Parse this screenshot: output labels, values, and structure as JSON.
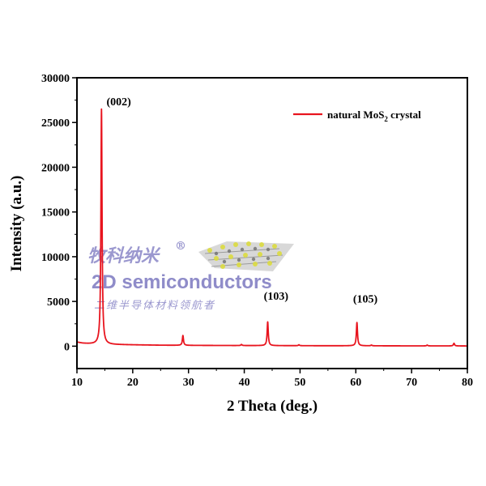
{
  "chart_data": {
    "type": "line",
    "xlabel": "2 Theta (deg.)",
    "ylabel": "Intensity (a.u.)",
    "xlim": [
      10,
      80
    ],
    "ylim": [
      -2500,
      30000
    ],
    "x_ticks": [
      10,
      20,
      30,
      40,
      50,
      60,
      70,
      80
    ],
    "y_ticks": [
      0,
      5000,
      10000,
      15000,
      20000,
      25000,
      30000
    ],
    "series": [
      {
        "name": "natural MoS2 crystal",
        "color": "#e8141e",
        "baseline": [
          [
            10,
            450
          ],
          [
            11,
            330
          ],
          [
            12,
            270
          ],
          [
            13,
            230
          ],
          [
            14,
            210
          ],
          [
            16,
            180
          ],
          [
            20,
            150
          ],
          [
            25,
            110
          ],
          [
            30,
            90
          ],
          [
            40,
            70
          ],
          [
            50,
            55
          ],
          [
            60,
            45
          ],
          [
            70,
            35
          ],
          [
            78,
            30
          ],
          [
            80,
            25
          ]
        ],
        "peaks": [
          {
            "x": 14.4,
            "y": 26300
          },
          {
            "x": 29.0,
            "y": 1100
          },
          {
            "x": 39.5,
            "y": 120
          },
          {
            "x": 44.2,
            "y": 2650
          },
          {
            "x": 49.8,
            "y": 100
          },
          {
            "x": 60.2,
            "y": 2600
          },
          {
            "x": 62.8,
            "y": 80
          },
          {
            "x": 72.8,
            "y": 90
          },
          {
            "x": 77.6,
            "y": 300
          }
        ]
      }
    ],
    "annotations": [
      {
        "text": "(002)",
        "x": 15.3,
        "y": 26900
      },
      {
        "text": "(103)",
        "x": 43.5,
        "y": 5200
      },
      {
        "text": "(105)",
        "x": 59.5,
        "y": 4900
      }
    ],
    "legend": {
      "position": "top-right",
      "label_main": "natural MoS",
      "label_sub": "2",
      "label_tail": " crystal"
    },
    "grid": false
  },
  "watermark": {
    "cn_title": "牧科纳米",
    "registered": "®",
    "en_title": "2D semiconductors",
    "cn_subtitle": "二维半导体材料领航者"
  }
}
